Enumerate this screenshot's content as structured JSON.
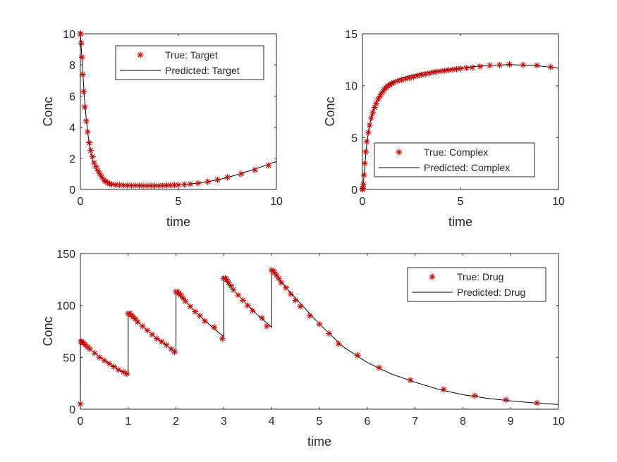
{
  "figure": {
    "background": "#ffffff"
  },
  "chart_data": [
    {
      "type": "line",
      "panel": "top-left",
      "xlabel": "time",
      "ylabel": "Conc",
      "xlim": [
        0,
        10
      ],
      "ylim": [
        0,
        10
      ],
      "xticks": [
        "0",
        "5",
        "10"
      ],
      "yticks": [
        "0",
        "2",
        "4",
        "6",
        "8",
        "10"
      ],
      "legend_location": "top-right",
      "series": [
        {
          "name": "True: Target",
          "style": "marker-asterisk",
          "color": "#cc0000",
          "x": [
            0,
            0.02,
            0.05,
            0.08,
            0.12,
            0.17,
            0.22,
            0.3,
            0.37,
            0.45,
            0.53,
            0.62,
            0.7,
            0.8,
            0.9,
            1.0,
            1.1,
            1.2,
            1.3,
            1.4,
            1.5,
            1.6,
            1.8,
            2.0,
            2.2,
            2.4,
            2.6,
            2.8,
            3.0,
            3.2,
            3.4,
            3.6,
            3.8,
            4.0,
            4.2,
            4.4,
            4.6,
            4.8,
            5.0,
            5.3,
            5.6,
            6.0,
            6.5,
            7.0,
            7.5,
            8.2,
            8.9,
            9.6
          ],
          "y": [
            10,
            10,
            9.4,
            8.5,
            7.4,
            6.3,
            5.3,
            4.4,
            3.7,
            3.0,
            2.5,
            2.1,
            1.7,
            1.45,
            1.2,
            1.0,
            0.8,
            0.6,
            0.5,
            0.42,
            0.37,
            0.33,
            0.3,
            0.28,
            0.27,
            0.26,
            0.25,
            0.25,
            0.25,
            0.24,
            0.24,
            0.24,
            0.24,
            0.24,
            0.25,
            0.26,
            0.27,
            0.28,
            0.29,
            0.31,
            0.34,
            0.4,
            0.5,
            0.62,
            0.78,
            1.0,
            1.25,
            1.55
          ]
        },
        {
          "name": "Predicted: Target",
          "style": "line",
          "color": "#000000",
          "x": [
            0,
            0.05,
            0.1,
            0.2,
            0.3,
            0.4,
            0.5,
            0.6,
            0.7,
            0.8,
            0.9,
            1.0,
            1.2,
            1.4,
            1.6,
            1.8,
            2.0,
            2.5,
            3.0,
            3.5,
            4.0,
            4.5,
            5.0,
            5.5,
            6.0,
            6.5,
            7.0,
            7.5,
            8.0,
            8.5,
            9.0,
            9.5,
            10.0
          ],
          "y": [
            10,
            9.0,
            8.0,
            6.0,
            4.5,
            3.4,
            2.6,
            2.0,
            1.6,
            1.3,
            1.1,
            0.9,
            0.62,
            0.45,
            0.36,
            0.31,
            0.28,
            0.25,
            0.24,
            0.24,
            0.24,
            0.26,
            0.29,
            0.34,
            0.4,
            0.5,
            0.62,
            0.77,
            0.95,
            1.15,
            1.35,
            1.57,
            1.8
          ]
        }
      ]
    },
    {
      "type": "line",
      "panel": "top-right",
      "xlabel": "time",
      "ylabel": "Conc",
      "xlim": [
        0,
        10
      ],
      "ylim": [
        0,
        15
      ],
      "xticks": [
        "0",
        "5",
        "10"
      ],
      "yticks": [
        "0",
        "5",
        "10",
        "15"
      ],
      "legend_location": "bottom-right",
      "series": [
        {
          "name": "True: Complex",
          "style": "marker-asterisk",
          "color": "#cc0000",
          "x": [
            0,
            0.02,
            0.05,
            0.08,
            0.12,
            0.17,
            0.22,
            0.3,
            0.37,
            0.45,
            0.53,
            0.62,
            0.7,
            0.8,
            0.9,
            1.0,
            1.1,
            1.2,
            1.3,
            1.4,
            1.5,
            1.6,
            1.8,
            2.0,
            2.2,
            2.4,
            2.6,
            2.8,
            3.0,
            3.2,
            3.4,
            3.6,
            3.8,
            4.0,
            4.2,
            4.4,
            4.6,
            4.8,
            5.0,
            5.3,
            5.6,
            6.0,
            6.5,
            7.0,
            7.5,
            8.2,
            8.9,
            9.6
          ],
          "y": [
            0,
            0.1,
            0.5,
            1.4,
            2.5,
            3.6,
            4.6,
            5.5,
            6.2,
            6.9,
            7.4,
            7.9,
            8.3,
            8.7,
            9.0,
            9.3,
            9.6,
            9.8,
            10.0,
            10.1,
            10.2,
            10.3,
            10.45,
            10.55,
            10.65,
            10.75,
            10.85,
            10.95,
            11.05,
            11.1,
            11.2,
            11.3,
            11.35,
            11.4,
            11.45,
            11.5,
            11.55,
            11.6,
            11.65,
            11.7,
            11.75,
            11.85,
            11.95,
            12.0,
            12.05,
            12.0,
            11.95,
            11.8
          ]
        },
        {
          "name": "Predicted: Complex",
          "style": "line",
          "color": "#000000",
          "x": [
            0,
            0.05,
            0.1,
            0.2,
            0.3,
            0.4,
            0.5,
            0.6,
            0.7,
            0.8,
            0.9,
            1.0,
            1.2,
            1.4,
            1.6,
            1.8,
            2.0,
            2.5,
            3.0,
            3.5,
            4.0,
            4.5,
            5.0,
            5.5,
            6.0,
            6.5,
            7.0,
            7.5,
            8.0,
            8.5,
            9.0,
            9.5,
            10.0
          ],
          "y": [
            0,
            0.6,
            1.8,
            4.0,
            5.5,
            6.5,
            7.3,
            7.9,
            8.4,
            8.8,
            9.2,
            9.5,
            9.95,
            10.25,
            10.45,
            10.6,
            10.75,
            11.0,
            11.2,
            11.35,
            11.5,
            11.6,
            11.7,
            11.8,
            11.9,
            11.95,
            12.0,
            12.02,
            12.0,
            11.95,
            11.9,
            11.8,
            11.7
          ]
        }
      ]
    },
    {
      "type": "line",
      "panel": "bottom",
      "xlabel": "time",
      "ylabel": "Conc",
      "xlim": [
        0,
        10
      ],
      "ylim": [
        0,
        150
      ],
      "xticks": [
        "0",
        "1",
        "2",
        "3",
        "4",
        "5",
        "6",
        "7",
        "8",
        "9",
        "10"
      ],
      "yticks": [
        "0",
        "50",
        "100",
        "150"
      ],
      "legend_location": "top-right",
      "series": [
        {
          "name": "True: Drug",
          "style": "marker-asterisk",
          "color": "#cc0000",
          "x": [
            0,
            0.01,
            0.03,
            0.06,
            0.1,
            0.15,
            0.2,
            0.3,
            0.4,
            0.5,
            0.6,
            0.7,
            0.8,
            0.9,
            0.97,
            1.0,
            1.03,
            1.06,
            1.1,
            1.15,
            1.2,
            1.3,
            1.4,
            1.5,
            1.6,
            1.7,
            1.8,
            1.9,
            1.97,
            2.0,
            2.03,
            2.06,
            2.1,
            2.15,
            2.2,
            2.3,
            2.4,
            2.5,
            2.6,
            2.8,
            2.97,
            3.0,
            3.03,
            3.06,
            3.1,
            3.15,
            3.2,
            3.3,
            3.4,
            3.5,
            3.6,
            3.8,
            3.9,
            4.0,
            4.03,
            4.06,
            4.1,
            4.15,
            4.2,
            4.3,
            4.4,
            4.5,
            4.6,
            4.8,
            5.0,
            5.2,
            5.4,
            5.8,
            6.25,
            6.9,
            7.6,
            8.25,
            8.9,
            9.55
          ],
          "y": [
            5,
            65,
            65,
            64,
            62,
            60,
            58,
            54,
            50,
            47,
            44,
            41,
            38,
            36,
            34,
            92,
            92,
            91,
            89,
            87,
            84,
            80,
            76,
            72,
            68,
            65,
            62,
            58,
            55,
            113,
            113,
            112,
            110,
            107,
            104,
            99,
            94,
            90,
            85,
            79,
            68,
            126,
            126,
            125,
            122,
            119,
            115,
            110,
            105,
            100,
            95,
            88,
            80,
            134,
            133,
            132,
            129,
            126,
            122,
            117,
            111,
            105,
            99,
            90,
            82,
            73,
            63,
            52,
            40,
            28,
            19,
            13,
            9,
            6
          ]
        },
        {
          "name": "Predicted: Drug",
          "style": "line",
          "color": "#000000",
          "x": [
            0,
            0.001,
            0.1,
            0.2,
            0.3,
            0.4,
            0.5,
            0.6,
            0.7,
            0.8,
            0.9,
            1.0,
            1.001,
            1.1,
            1.2,
            1.3,
            1.4,
            1.5,
            1.6,
            1.7,
            1.8,
            1.9,
            2.0,
            2.001,
            2.1,
            2.2,
            2.3,
            2.4,
            2.5,
            2.6,
            2.7,
            2.8,
            2.9,
            3.0,
            3.001,
            3.1,
            3.2,
            3.3,
            3.4,
            3.5,
            3.6,
            3.7,
            3.8,
            3.9,
            4.0,
            4.001,
            4.2,
            4.4,
            4.6,
            4.8,
            5.0,
            5.5,
            6.0,
            6.5,
            7.0,
            7.5,
            8.0,
            8.5,
            9.0,
            9.5,
            10.0
          ],
          "y": [
            0,
            65,
            62,
            58,
            54,
            50,
            47,
            44,
            41,
            38,
            35.5,
            33,
            92,
            88,
            84,
            80,
            76,
            72,
            68,
            65,
            61.5,
            58,
            55,
            113,
            108,
            104,
            99,
            94,
            90,
            85.5,
            81.5,
            77.5,
            73.5,
            70,
            126,
            120,
            115,
            110,
            105,
            100,
            96,
            91,
            87,
            83,
            79,
            134,
            123,
            112,
            102,
            92,
            82,
            60,
            45,
            34,
            26,
            19,
            14,
            10.5,
            8,
            6,
            4.5
          ]
        }
      ]
    }
  ]
}
